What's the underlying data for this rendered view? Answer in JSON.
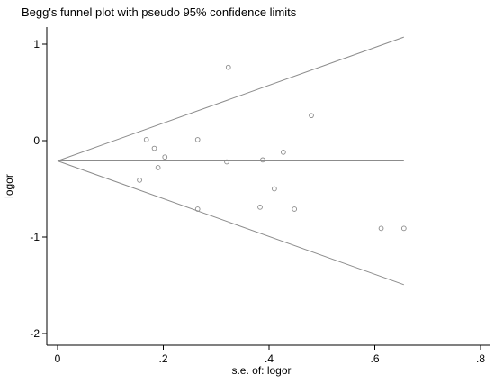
{
  "chart_data": {
    "type": "scatter",
    "title": "Begg's funnel plot with pseudo 95% confidence limits",
    "xlabel": "s.e. of: logor",
    "ylabel": "logor",
    "xlim": [
      0,
      0.8
    ],
    "ylim": [
      -2,
      1.2
    ],
    "x_ticks": [
      {
        "value": 0,
        "label": "0"
      },
      {
        "value": 0.2,
        "label": ".2"
      },
      {
        "value": 0.4,
        "label": ".4"
      },
      {
        "value": 0.6,
        "label": ".6"
      },
      {
        "value": 0.8,
        "label": ".8"
      }
    ],
    "y_ticks": [
      {
        "value": 1,
        "label": "1"
      },
      {
        "value": 0,
        "label": "0"
      },
      {
        "value": -1,
        "label": "-1"
      },
      {
        "value": -2,
        "label": "-2"
      }
    ],
    "pooled_estimate": -0.21,
    "funnel_se_max": 0.655,
    "grid": false,
    "points": [
      {
        "x": 0.155,
        "y": -0.41
      },
      {
        "x": 0.168,
        "y": 0.01
      },
      {
        "x": 0.183,
        "y": -0.08
      },
      {
        "x": 0.19,
        "y": -0.28
      },
      {
        "x": 0.203,
        "y": -0.17
      },
      {
        "x": 0.265,
        "y": 0.01
      },
      {
        "x": 0.265,
        "y": -0.71
      },
      {
        "x": 0.32,
        "y": -0.22
      },
      {
        "x": 0.323,
        "y": 0.76
      },
      {
        "x": 0.383,
        "y": -0.69
      },
      {
        "x": 0.388,
        "y": -0.2
      },
      {
        "x": 0.41,
        "y": -0.5
      },
      {
        "x": 0.427,
        "y": -0.12
      },
      {
        "x": 0.448,
        "y": -0.71
      },
      {
        "x": 0.48,
        "y": 0.26
      },
      {
        "x": 0.612,
        "y": -0.91
      },
      {
        "x": 0.655,
        "y": -0.91
      }
    ]
  }
}
